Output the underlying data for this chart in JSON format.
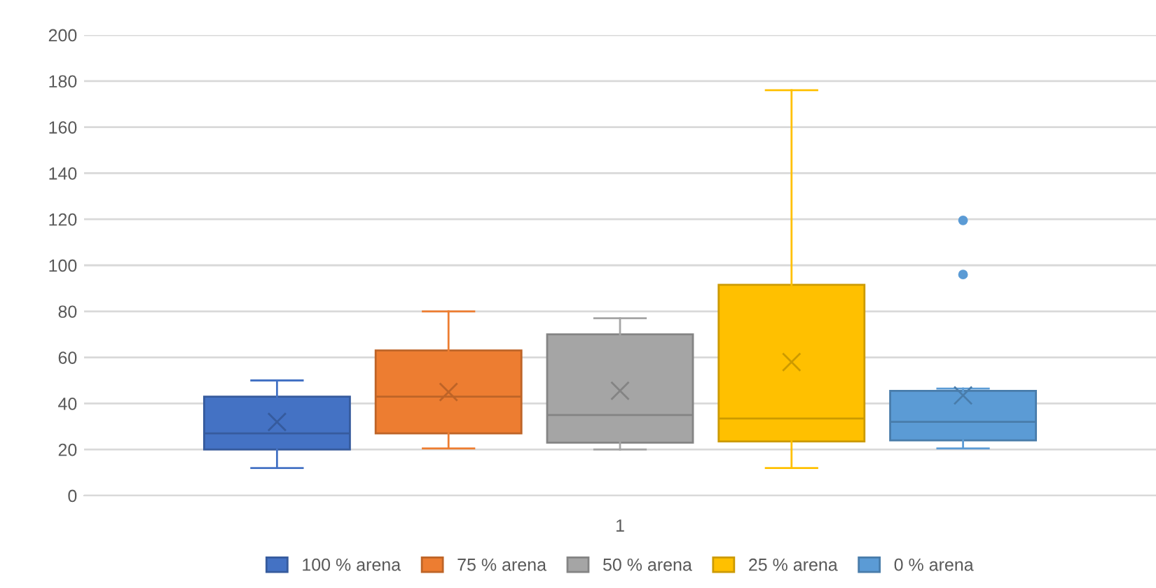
{
  "chart_data": {
    "type": "box",
    "categories": [
      "1"
    ],
    "ylim": [
      0,
      200
    ],
    "yticks": [
      0,
      20,
      40,
      60,
      80,
      100,
      120,
      140,
      160,
      180,
      200
    ],
    "grid": "y",
    "legend": "bottom",
    "series": [
      {
        "name": "100 % arena",
        "color": "#4472c4",
        "boxes": [
          {
            "low": 12,
            "q1": 20,
            "median": 27,
            "q3": 43,
            "high": 50,
            "mean": 32
          }
        ]
      },
      {
        "name": "75 % arena",
        "color": "#ed7d31",
        "boxes": [
          {
            "low": 20.5,
            "q1": 27,
            "median": 43,
            "q3": 63,
            "high": 80,
            "mean": 45
          }
        ]
      },
      {
        "name": "50 % arena",
        "color": "#a5a5a5",
        "boxes": [
          {
            "low": 20,
            "q1": 23,
            "median": 35,
            "q3": 70,
            "high": 77,
            "mean": 45.5
          }
        ]
      },
      {
        "name": "25 % arena",
        "color": "#ffc000",
        "boxes": [
          {
            "low": 12,
            "q1": 23.5,
            "median": 33.5,
            "q3": 91.5,
            "high": 176,
            "mean": 58
          }
        ]
      },
      {
        "name": "0 % arena",
        "color": "#5b9bd5",
        "boxes": [
          {
            "low": 20.5,
            "q1": 24,
            "median": 32,
            "q3": 45.5,
            "high": 46.5,
            "mean": 43.5,
            "outliers": [
              96,
              119.5
            ]
          }
        ]
      }
    ]
  }
}
